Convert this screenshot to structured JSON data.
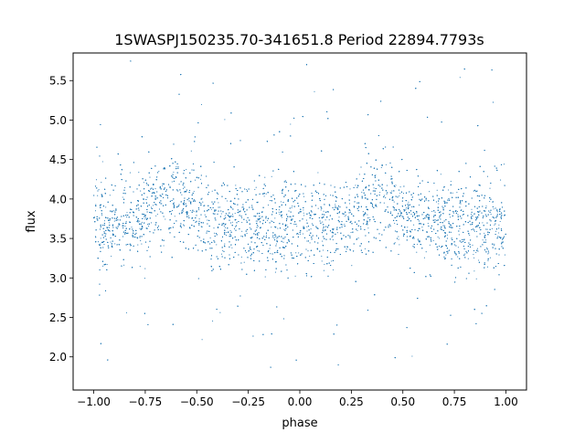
{
  "chart_data": {
    "type": "scatter",
    "title": "1SWASPJ150235.70-341651.8 Period 22894.7793s",
    "xlabel": "phase",
    "ylabel": "flux",
    "xlim": [
      -1.1,
      1.1
    ],
    "ylim": [
      1.58,
      5.85
    ],
    "grid": false,
    "legend": "none",
    "marker_color": "#1f77b4",
    "x_ticks": [
      {
        "value": -1.0,
        "label": "−1.00"
      },
      {
        "value": -0.75,
        "label": "−0.75"
      },
      {
        "value": -0.5,
        "label": "−0.50"
      },
      {
        "value": -0.25,
        "label": "−0.25"
      },
      {
        "value": 0.0,
        "label": "0.00"
      },
      {
        "value": 0.25,
        "label": "0.25"
      },
      {
        "value": 0.5,
        "label": "0.50"
      },
      {
        "value": 0.75,
        "label": "0.75"
      },
      {
        "value": 1.0,
        "label": "1.00"
      }
    ],
    "y_ticks": [
      {
        "value": 2.0,
        "label": "2.0"
      },
      {
        "value": 2.5,
        "label": "2.5"
      },
      {
        "value": 3.0,
        "label": "3.0"
      },
      {
        "value": 3.5,
        "label": "3.5"
      },
      {
        "value": 4.0,
        "label": "4.0"
      },
      {
        "value": 4.5,
        "label": "4.5"
      },
      {
        "value": 5.0,
        "label": "5.0"
      },
      {
        "value": 5.5,
        "label": "5.5"
      }
    ],
    "phase_range": [
      -1.0,
      1.0
    ],
    "approx_baseline_flux": 3.68,
    "approx_core_spread_flux": [
      3.2,
      4.2
    ],
    "approx_outlier_range_flux": [
      1.8,
      5.75
    ],
    "approx_peaks": [
      {
        "phase": -0.62,
        "flux": 4.45
      },
      {
        "phase": 0.38,
        "flux": 4.45
      }
    ]
  }
}
